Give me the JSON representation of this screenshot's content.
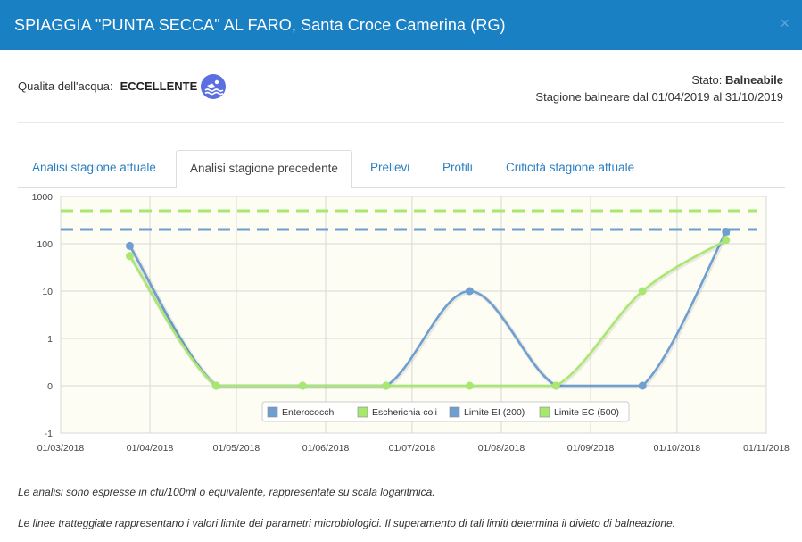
{
  "header": {
    "title": "SPIAGGIA \"PUNTA SECCA\" AL FARO, Santa Croce Camerina (RG)",
    "close_symbol": "×"
  },
  "quality": {
    "label": "Qualita dell'acqua:",
    "value": "ECCELLENTE",
    "icon": "swimmer-icon"
  },
  "status": {
    "label": "Stato:",
    "value": "Balneabile",
    "season": "Stagione balneare dal 01/04/2019 al 31/10/2019"
  },
  "tabs": [
    {
      "label": "Analisi stagione attuale",
      "active": false
    },
    {
      "label": "Analisi stagione precedente",
      "active": true
    },
    {
      "label": "Prelievi",
      "active": false
    },
    {
      "label": "Profili",
      "active": false
    },
    {
      "label": "Criticità stagione attuale",
      "active": false
    }
  ],
  "chart_data": {
    "type": "line",
    "y_scale": "log",
    "y_ticks": [
      "1000",
      "100",
      "10",
      "1",
      "0",
      "-1"
    ],
    "x_ticks": [
      "01/03/2018",
      "01/04/2018",
      "01/05/2018",
      "01/06/2018",
      "01/07/2018",
      "01/08/2018",
      "01/09/2018",
      "01/10/2018",
      "01/11/2018"
    ],
    "xlim": [
      "2018-03-01",
      "2018-11-01"
    ],
    "grid": true,
    "legend_position": "bottom-center",
    "series": [
      {
        "name": "Enterococchi",
        "color": "#6e9fd0",
        "style": "solid",
        "points": [
          [
            "2018-03-25",
            90
          ],
          [
            "2018-04-24",
            0
          ],
          [
            "2018-05-24",
            0
          ],
          [
            "2018-06-22",
            0
          ],
          [
            "2018-07-21",
            10
          ],
          [
            "2018-08-20",
            0
          ],
          [
            "2018-09-19",
            0
          ],
          [
            "2018-10-18",
            180
          ]
        ]
      },
      {
        "name": "Escherichia coli",
        "color": "#a9e870",
        "style": "solid",
        "points": [
          [
            "2018-03-25",
            55
          ],
          [
            "2018-04-24",
            0
          ],
          [
            "2018-05-24",
            0
          ],
          [
            "2018-06-22",
            0
          ],
          [
            "2018-07-21",
            0
          ],
          [
            "2018-08-20",
            0
          ],
          [
            "2018-09-19",
            10
          ],
          [
            "2018-10-18",
            120
          ]
        ]
      },
      {
        "name": "Limite EI (200)",
        "color": "#6e9fd0",
        "style": "dashed",
        "value": 200
      },
      {
        "name": "Limite EC (500)",
        "color": "#a9e870",
        "style": "dashed",
        "value": 500
      }
    ]
  },
  "notes": [
    "Le analisi sono espresse in cfu/100ml o equivalente, rappresentate su scala logaritmica.",
    "Le linee tratteggiate rappresentano i valori limite dei parametri microbiologici. Il superamento di tali limiti determina il divieto di balneazione."
  ]
}
